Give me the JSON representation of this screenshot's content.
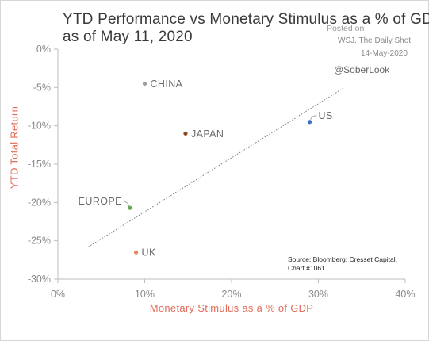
{
  "stamp": {
    "posted_on": "Posted on",
    "source": "WSJ. The Daily Shot",
    "date": "14-May-2020"
  },
  "handle": "@SoberLook",
  "chart_data": {
    "type": "scatter",
    "title": "YTD Performance vs Monetary Stimulus as a % of GDP",
    "subtitle": "as of May 11, 2020",
    "xlabel": "Monetary Stimulus as a % of GDP",
    "ylabel": "YTD Total Return",
    "xlim": [
      0,
      40
    ],
    "ylim": [
      -30,
      0
    ],
    "x_ticks": [
      "0%",
      "10%",
      "20%",
      "30%",
      "40%"
    ],
    "y_ticks": [
      "0%",
      "-5%",
      "-10%",
      "-15%",
      "-20%",
      "-25%",
      "-30%"
    ],
    "grid": false,
    "points": [
      {
        "label": "CHINA",
        "x": 10.0,
        "y": -4.5,
        "color": "#9e9e9e"
      },
      {
        "label": "JAPAN",
        "x": 14.7,
        "y": -11.0,
        "color": "#8b4a22"
      },
      {
        "label": "US",
        "x": 29.0,
        "y": -9.5,
        "color": "#3f6fc4"
      },
      {
        "label": "EUROPE",
        "x": 8.3,
        "y": -20.7,
        "color": "#6aa84f"
      },
      {
        "label": "UK",
        "x": 9.0,
        "y": -26.5,
        "color": "#e9835f"
      }
    ],
    "trendline": {
      "x": [
        3.5,
        33.0
      ],
      "y": [
        -25.8,
        -5.0
      ],
      "style": "dotted",
      "color": "#777777"
    },
    "source_note": [
      "Source: Bloomberg; Cresset Capital.",
      "Chart #1061"
    ]
  }
}
